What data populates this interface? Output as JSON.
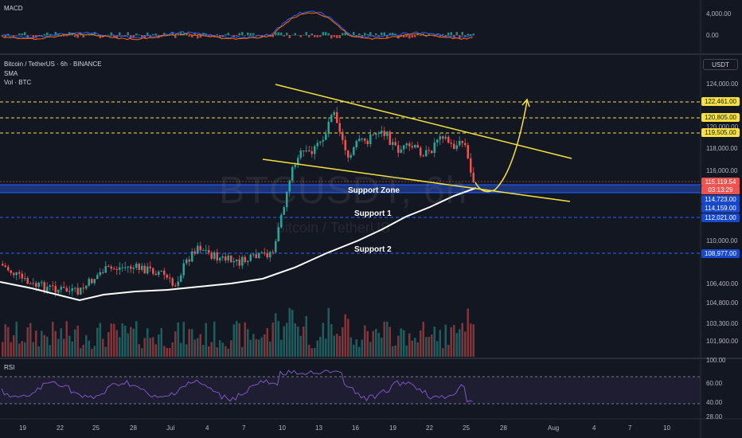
{
  "panes": {
    "macd": {
      "label": "MACD",
      "ticks": [
        "4,000.00",
        "0.00"
      ]
    },
    "main": {
      "symbol_line": "Bitcoin / TetherUS · 6h · BINANCE",
      "indicator_1": "SMA",
      "indicator_2": "Vol · BTC",
      "unit_button": "USDT",
      "watermark_symbol": "BTCUSDT, 6h",
      "watermark_name": "Bitcoin / TetherUS",
      "price_ticks": [
        "124,000.00",
        "118,000.00",
        "116,000.00",
        "110,000.00",
        "106,400.00",
        "104,800.00",
        "103,300.00",
        "101,900.00"
      ],
      "partial_tick": "120,000.00",
      "badges": {
        "level_122461": "122,461.00",
        "level_120805": "120,805.00",
        "level_119505": "119,505.00",
        "last_price": "115,119.54",
        "countdown": "03:13:29",
        "level_114723": "114,723.00",
        "level_114159": "114,159.00",
        "level_112021": "112,021.00",
        "level_108977": "108,977.00"
      },
      "annotations": {
        "support_zone": "Support Zone",
        "support_1": "Support 1",
        "support_2": "Support 2"
      }
    },
    "rsi": {
      "label": "RSI",
      "ticks": [
        "100.00",
        "60.00",
        "40.00",
        "28.00"
      ]
    }
  },
  "date_axis": [
    "19",
    "22",
    "25",
    "28",
    "Jul",
    "4",
    "7",
    "10",
    "13",
    "16",
    "19",
    "22",
    "25",
    "28",
    "Aug",
    "4",
    "7",
    "10"
  ],
  "colors": {
    "background": "#131722",
    "up": "#26a69a",
    "down": "#ef5350",
    "trendline": "#f7e23f",
    "sma": "#ffffff",
    "zone": "#1e3a8a",
    "level_blue": "#2962ff",
    "level_yellow": "#f7e23f"
  }
}
